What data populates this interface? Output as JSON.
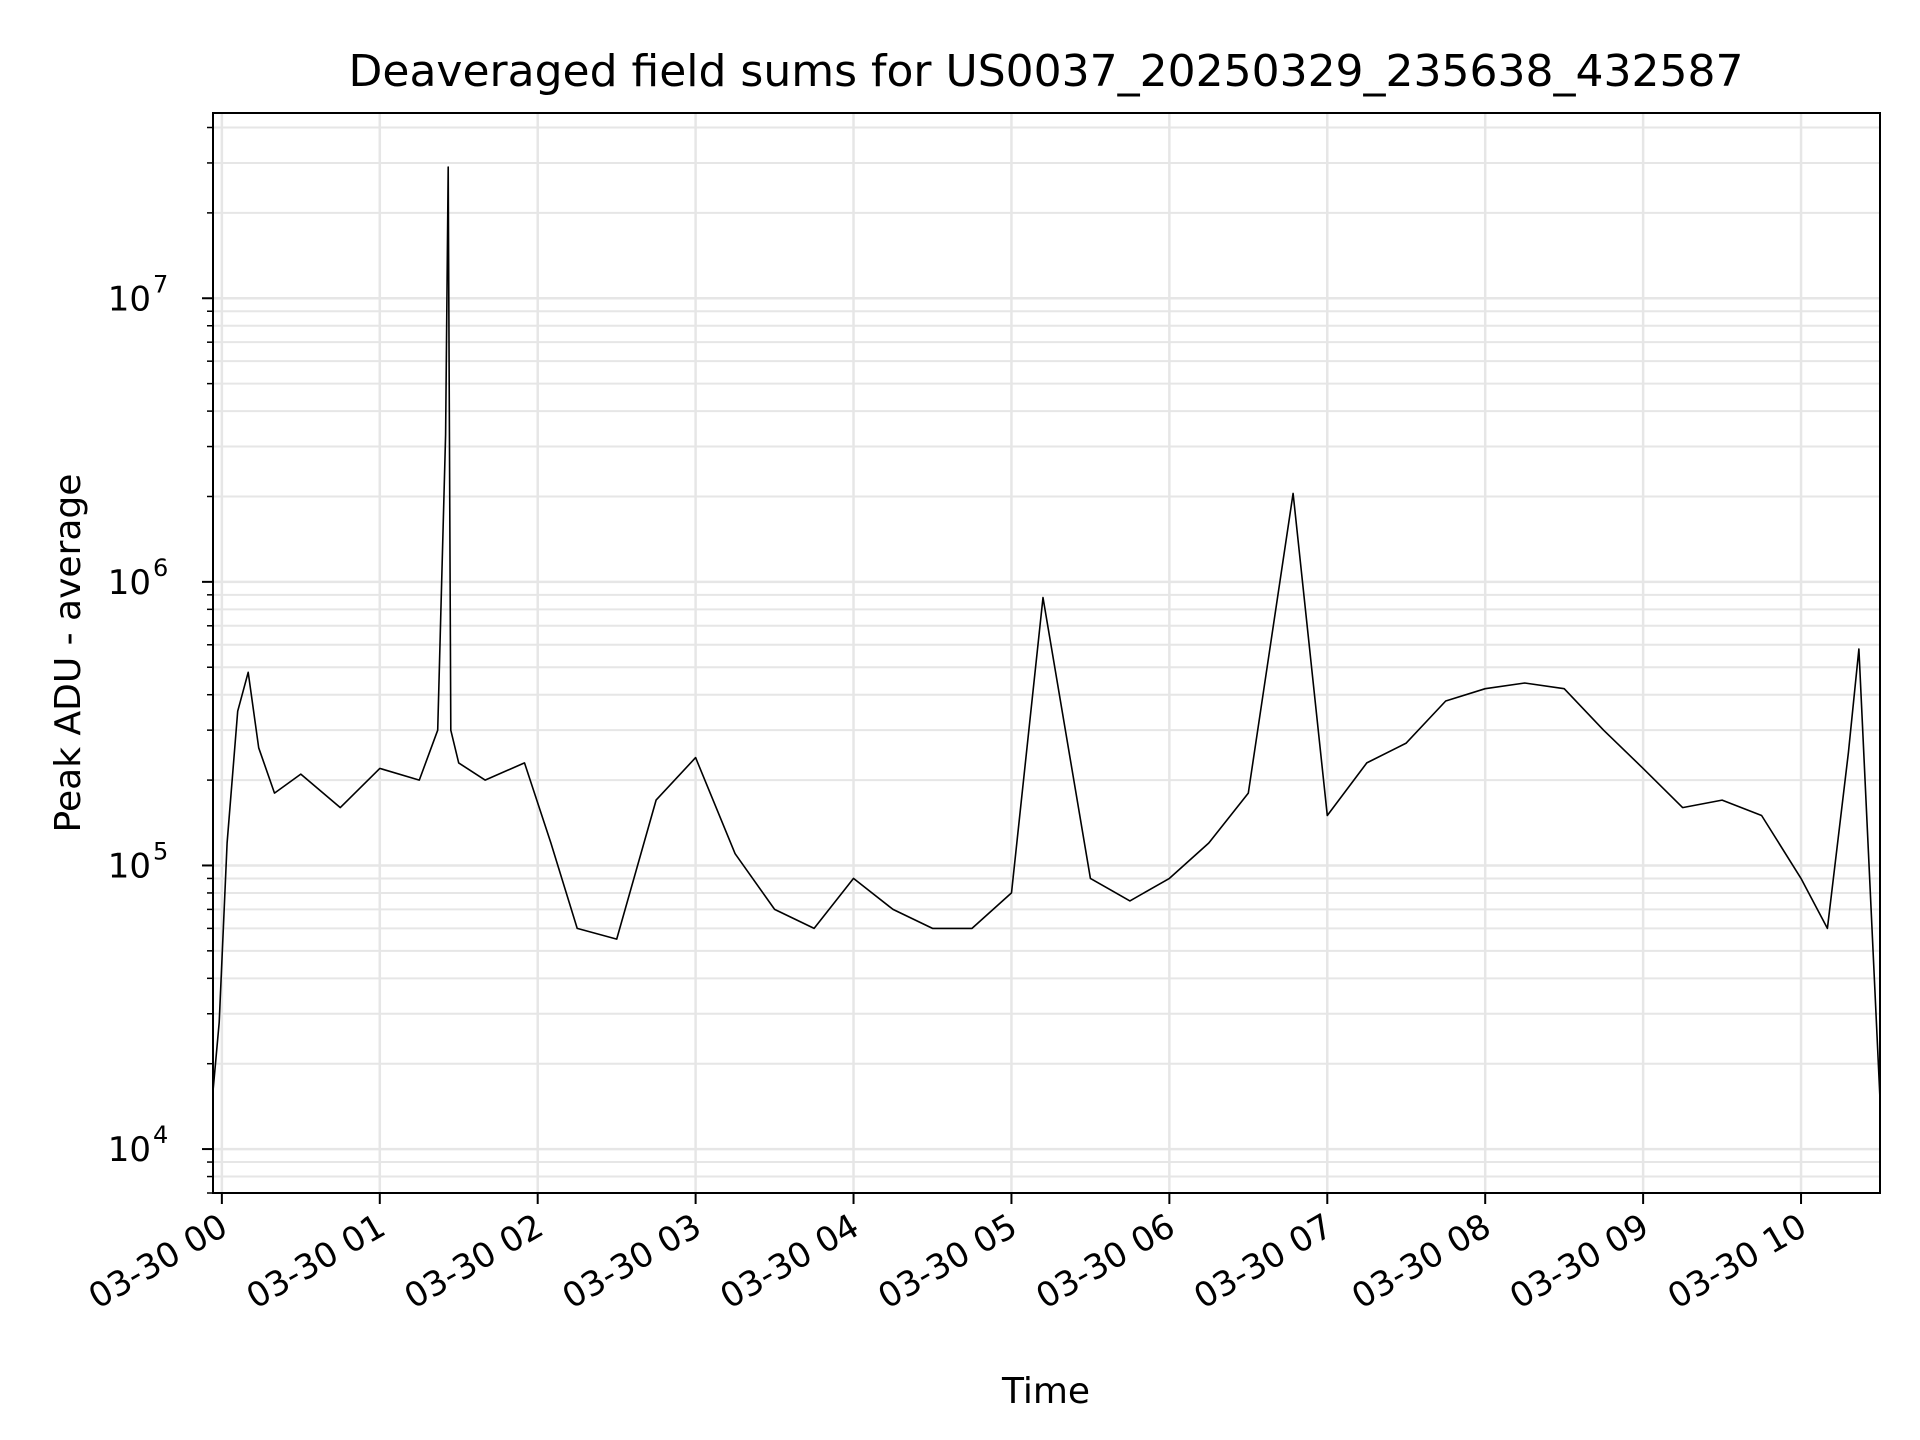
{
  "chart_data": {
    "type": "line",
    "title": "Deaveraged field sums for US0037_20250329_235638_432587",
    "xlabel": "Time",
    "ylabel": "Peak ADU - average",
    "yscale": "log",
    "ylim": [
      7000,
      45000000
    ],
    "xlim": [
      "2025-03-29 23:56:38",
      "2025-03-30 10:30:00"
    ],
    "grid": true,
    "line_color": "#000000",
    "grid_color": "#e6e6e6",
    "x_ticks": [
      {
        "time": "2025-03-30 00:00",
        "label": "03-30 00"
      },
      {
        "time": "2025-03-30 01:00",
        "label": "03-30 01"
      },
      {
        "time": "2025-03-30 02:00",
        "label": "03-30 02"
      },
      {
        "time": "2025-03-30 03:00",
        "label": "03-30 03"
      },
      {
        "time": "2025-03-30 04:00",
        "label": "03-30 04"
      },
      {
        "time": "2025-03-30 05:00",
        "label": "03-30 05"
      },
      {
        "time": "2025-03-30 06:00",
        "label": "03-30 06"
      },
      {
        "time": "2025-03-30 07:00",
        "label": "03-30 07"
      },
      {
        "time": "2025-03-30 08:00",
        "label": "03-30 08"
      },
      {
        "time": "2025-03-30 09:00",
        "label": "03-30 09"
      },
      {
        "time": "2025-03-30 10:00",
        "label": "03-30 10"
      }
    ],
    "y_ticks": [
      {
        "value": 10000,
        "base": "10",
        "exp": "4"
      },
      {
        "value": 100000,
        "base": "10",
        "exp": "5"
      },
      {
        "value": 1000000,
        "base": "10",
        "exp": "6"
      },
      {
        "value": 10000000,
        "base": "10",
        "exp": "7"
      }
    ],
    "series": [
      {
        "x": [
          "2025-03-29 23:56:38",
          "2025-03-29 23:59:00",
          "2025-03-30 00:02:00",
          "2025-03-30 00:06:00",
          "2025-03-30 00:10:00",
          "2025-03-30 00:14:00",
          "2025-03-30 00:20:00",
          "2025-03-30 00:30:00",
          "2025-03-30 00:45:00",
          "2025-03-30 01:00:00",
          "2025-03-30 01:15:00",
          "2025-03-30 01:22:00",
          "2025-03-30 01:25:00",
          "2025-03-30 01:26:00",
          "2025-03-30 01:27:00",
          "2025-03-30 01:30:00",
          "2025-03-30 01:40:00",
          "2025-03-30 01:55:00",
          "2025-03-30 02:05:00",
          "2025-03-30 02:15:00",
          "2025-03-30 02:30:00",
          "2025-03-30 02:45:00",
          "2025-03-30 03:00:00",
          "2025-03-30 03:15:00",
          "2025-03-30 03:30:00",
          "2025-03-30 03:45:00",
          "2025-03-30 04:00:00",
          "2025-03-30 04:15:00",
          "2025-03-30 04:30:00",
          "2025-03-30 04:45:00",
          "2025-03-30 05:00:00",
          "2025-03-30 05:12:00",
          "2025-03-30 05:30:00",
          "2025-03-30 05:45:00",
          "2025-03-30 06:00:00",
          "2025-03-30 06:15:00",
          "2025-03-30 06:30:00",
          "2025-03-30 06:47:00",
          "2025-03-30 07:00:00",
          "2025-03-30 07:15:00",
          "2025-03-30 07:30:00",
          "2025-03-30 07:45:00",
          "2025-03-30 08:00:00",
          "2025-03-30 08:15:00",
          "2025-03-30 08:30:00",
          "2025-03-30 08:45:00",
          "2025-03-30 09:00:00",
          "2025-03-30 09:15:00",
          "2025-03-30 09:30:00",
          "2025-03-30 09:45:00",
          "2025-03-30 10:00:00",
          "2025-03-30 10:10:00",
          "2025-03-30 10:18:00",
          "2025-03-30 10:22:00",
          "2025-03-30 10:30:00"
        ],
        "y": [
          16000,
          28000,
          120000,
          350000,
          480000,
          260000,
          180000,
          210000,
          160000,
          220000,
          200000,
          300000,
          3300000,
          29000000,
          300000,
          230000,
          200000,
          230000,
          120000,
          60000,
          55000,
          170000,
          240000,
          110000,
          70000,
          60000,
          90000,
          70000,
          60000,
          60000,
          80000,
          880000,
          90000,
          75000,
          90000,
          120000,
          180000,
          2050000,
          150000,
          230000,
          270000,
          380000,
          420000,
          440000,
          420000,
          300000,
          220000,
          160000,
          170000,
          150000,
          90000,
          60000,
          250000,
          580000,
          15000
        ]
      }
    ]
  }
}
